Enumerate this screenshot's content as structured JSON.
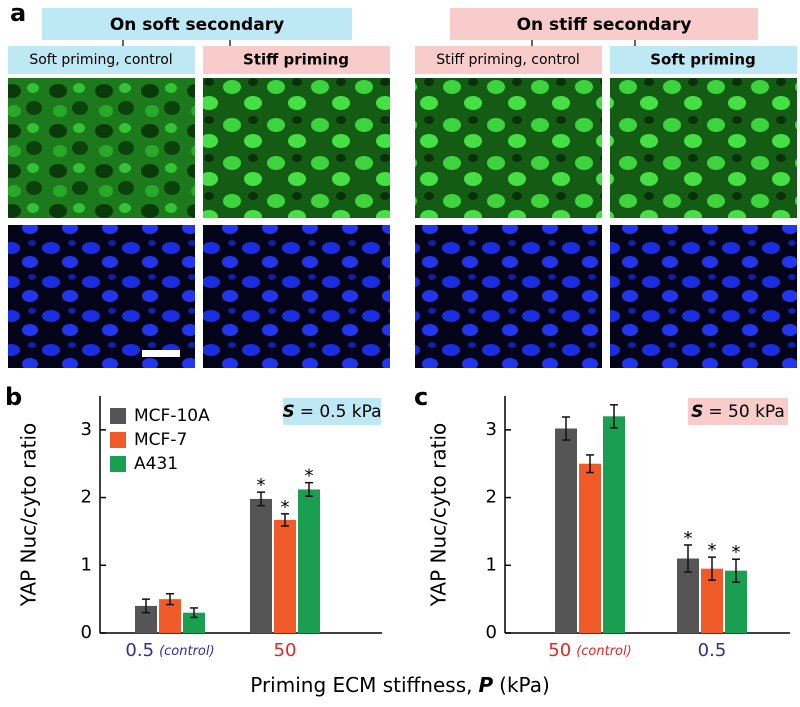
{
  "panel_a": {
    "label": "a",
    "groups": [
      {
        "title": "On soft secondary",
        "columns": [
          "Soft priming, control",
          "Stiff priming"
        ]
      },
      {
        "title": "On stiff secondary",
        "columns": [
          "Stiff priming, control",
          "Soft priming"
        ]
      }
    ]
  },
  "xlabel": {
    "text": "Priming ECM stiffness,",
    "symbol": "P",
    "unit": "(kPa)"
  },
  "chart_data": [
    {
      "type": "bar",
      "panel": "b",
      "ylabel": "YAP Nuc/cyto ratio",
      "annotation": {
        "symbol": "S",
        "text": "= 0.5 kPa"
      },
      "categories": [
        "0.5",
        "50"
      ],
      "category_notes": [
        "(control)",
        null
      ],
      "category_colors": [
        "#2e3192",
        "#e32626"
      ],
      "ylim": [
        0,
        3.5
      ],
      "yticks": [
        0,
        1,
        2,
        3
      ],
      "series": [
        {
          "name": "MCF-10A",
          "color": "#555555",
          "values": [
            0.4,
            1.98
          ],
          "errors": [
            0.1,
            0.1
          ],
          "labels": [
            null,
            "*"
          ]
        },
        {
          "name": "MCF-7",
          "color": "#f15a29",
          "values": [
            0.5,
            1.67
          ],
          "errors": [
            0.08,
            0.09
          ],
          "labels": [
            null,
            "*"
          ]
        },
        {
          "name": "A431",
          "color": "#1a9e50",
          "values": [
            0.3,
            2.12
          ],
          "errors": [
            0.07,
            0.1
          ],
          "labels": [
            null,
            "*"
          ]
        }
      ]
    },
    {
      "type": "bar",
      "panel": "c",
      "ylabel": "YAP Nuc/cyto ratio",
      "annotation": {
        "symbol": "S",
        "text": "= 50 kPa"
      },
      "categories": [
        "50",
        "0.5"
      ],
      "category_notes": [
        "(control)",
        null
      ],
      "category_colors": [
        "#e32626",
        "#2e3192"
      ],
      "ylim": [
        0,
        3.5
      ],
      "yticks": [
        0,
        1,
        2,
        3
      ],
      "series": [
        {
          "name": "MCF-10A",
          "color": "#555555",
          "values": [
            3.02,
            1.1
          ],
          "errors": [
            0.17,
            0.2
          ],
          "labels": [
            null,
            "*"
          ]
        },
        {
          "name": "MCF-7",
          "color": "#f15a29",
          "values": [
            2.5,
            0.95
          ],
          "errors": [
            0.13,
            0.17
          ],
          "labels": [
            null,
            "*"
          ]
        },
        {
          "name": "A431",
          "color": "#1a9e50",
          "values": [
            3.2,
            0.92
          ],
          "errors": [
            0.17,
            0.17
          ],
          "labels": [
            null,
            "*"
          ]
        }
      ]
    }
  ]
}
